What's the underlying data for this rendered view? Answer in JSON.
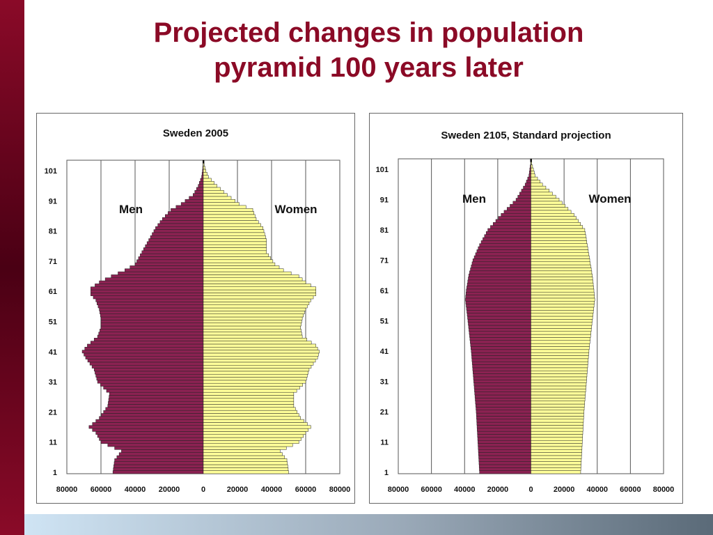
{
  "slide": {
    "title_line1": "Projected changes in population",
    "title_line2": "pyramid 100 years later"
  },
  "colors": {
    "accent": "#8b0a26",
    "men_fill": "#8b2252",
    "women_fill": "#ffff99"
  },
  "chart_data": [
    {
      "type": "bar",
      "orientation": "horizontal-pyramid",
      "title": "Sweden 2005",
      "series": [
        {
          "name": "Men"
        },
        {
          "name": "Women"
        }
      ],
      "y_tick_labels": [
        "1",
        "11",
        "21",
        "31",
        "41",
        "51",
        "61",
        "71",
        "81",
        "91",
        "101"
      ],
      "x_tick_labels": [
        "80000",
        "60000",
        "40000",
        "20000",
        "0",
        "20000",
        "40000",
        "60000",
        "80000"
      ],
      "xlim": [
        -80000,
        80000
      ],
      "ylim": [
        1,
        104
      ],
      "grid": true,
      "men_points": [
        [
          1,
          53000
        ],
        [
          5,
          52000
        ],
        [
          8,
          48000
        ],
        [
          11,
          60000
        ],
        [
          14,
          63000
        ],
        [
          16,
          67000
        ],
        [
          19,
          61000
        ],
        [
          23,
          56000
        ],
        [
          27,
          55000
        ],
        [
          31,
          62000
        ],
        [
          35,
          64000
        ],
        [
          39,
          69000
        ],
        [
          41,
          71000
        ],
        [
          43,
          68000
        ],
        [
          46,
          62000
        ],
        [
          49,
          60000
        ],
        [
          52,
          60000
        ],
        [
          55,
          61000
        ],
        [
          58,
          63000
        ],
        [
          60,
          66000
        ],
        [
          62,
          66000
        ],
        [
          64,
          61000
        ],
        [
          66,
          54000
        ],
        [
          68,
          46000
        ],
        [
          70,
          40000
        ],
        [
          74,
          36000
        ],
        [
          78,
          32000
        ],
        [
          82,
          28000
        ],
        [
          85,
          24000
        ],
        [
          88,
          19000
        ],
        [
          90,
          13000
        ],
        [
          93,
          6000
        ],
        [
          96,
          3000
        ],
        [
          99,
          1000
        ],
        [
          101,
          500
        ],
        [
          103,
          200
        ]
      ],
      "women_points": [
        [
          1,
          50000
        ],
        [
          5,
          49000
        ],
        [
          8,
          45000
        ],
        [
          11,
          56000
        ],
        [
          14,
          60000
        ],
        [
          16,
          63000
        ],
        [
          19,
          57000
        ],
        [
          23,
          53000
        ],
        [
          27,
          53000
        ],
        [
          31,
          60000
        ],
        [
          35,
          62000
        ],
        [
          39,
          67000
        ],
        [
          41,
          68000
        ],
        [
          43,
          66000
        ],
        [
          46,
          58000
        ],
        [
          49,
          57000
        ],
        [
          52,
          58000
        ],
        [
          55,
          60000
        ],
        [
          58,
          63000
        ],
        [
          60,
          66000
        ],
        [
          62,
          66000
        ],
        [
          64,
          60000
        ],
        [
          66,
          56000
        ],
        [
          68,
          47000
        ],
        [
          70,
          42000
        ],
        [
          74,
          37000
        ],
        [
          78,
          37000
        ],
        [
          82,
          35000
        ],
        [
          85,
          31000
        ],
        [
          88,
          29000
        ],
        [
          90,
          21000
        ],
        [
          93,
          14000
        ],
        [
          96,
          8000
        ],
        [
          99,
          3000
        ],
        [
          101,
          1500
        ],
        [
          103,
          500
        ]
      ]
    },
    {
      "type": "bar",
      "orientation": "horizontal-pyramid",
      "title": "Sweden 2105, Standard projection",
      "series": [
        {
          "name": "Men"
        },
        {
          "name": "Women"
        }
      ],
      "y_tick_labels": [
        "1",
        "11",
        "21",
        "31",
        "41",
        "51",
        "61",
        "71",
        "81",
        "91",
        "101"
      ],
      "x_tick_labels": [
        "80000",
        "60000",
        "40000",
        "20000",
        "0",
        "20000",
        "40000",
        "60000",
        "80000"
      ],
      "xlim": [
        -80000,
        80000
      ],
      "ylim": [
        1,
        104
      ],
      "grid": true,
      "men_points": [
        [
          1,
          31000
        ],
        [
          11,
          32000
        ],
        [
          21,
          33000
        ],
        [
          31,
          34500
        ],
        [
          41,
          36000
        ],
        [
          51,
          38000
        ],
        [
          58,
          39500
        ],
        [
          61,
          39000
        ],
        [
          66,
          37500
        ],
        [
          71,
          35000
        ],
        [
          76,
          31000
        ],
        [
          81,
          26000
        ],
        [
          86,
          18000
        ],
        [
          91,
          9000
        ],
        [
          96,
          3500
        ],
        [
          99,
          1200
        ],
        [
          103,
          200
        ]
      ],
      "women_points": [
        [
          1,
          30000
        ],
        [
          11,
          31000
        ],
        [
          21,
          32000
        ],
        [
          31,
          33500
        ],
        [
          41,
          35000
        ],
        [
          51,
          37000
        ],
        [
          58,
          38500
        ],
        [
          61,
          38000
        ],
        [
          66,
          37000
        ],
        [
          71,
          35500
        ],
        [
          76,
          34000
        ],
        [
          81,
          32500
        ],
        [
          86,
          26000
        ],
        [
          91,
          17000
        ],
        [
          96,
          7000
        ],
        [
          99,
          2500
        ],
        [
          103,
          500
        ]
      ]
    }
  ]
}
